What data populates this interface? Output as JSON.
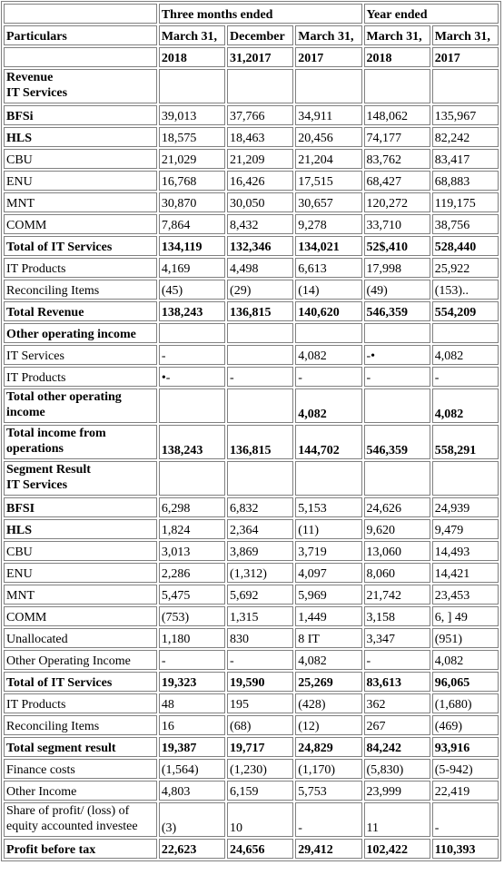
{
  "headers": {
    "particulars": "Particulars",
    "three_months": "Three months ended",
    "year_ended": "Year ended",
    "col1_top": "March 31,",
    "col1_bottom": "2018",
    "col2_top": "December",
    "col2_bottom": "31,2017",
    "col3_top": "March 31,",
    "col3_bottom": "2017",
    "col4_top": "March 31,",
    "col4_bottom": "2018",
    "col5_top": "March 31,",
    "col5_bottom": "2017"
  },
  "rows": [
    {
      "label": "Revenue\nIT Services",
      "bold": true,
      "rowclass": "r2",
      "values": [
        "",
        "",
        "",
        "",
        ""
      ]
    },
    {
      "label": "BFSi",
      "bold": true,
      "values": [
        "39,013",
        "37,766",
        "34,911",
        "148,062",
        "135,967"
      ]
    },
    {
      "label": "HLS",
      "bold": true,
      "values": [
        "18,575",
        "18,463",
        "20,456",
        "74,177",
        "82,242"
      ]
    },
    {
      "label": "CBU",
      "values": [
        "21,029",
        "21,209",
        "21,204",
        "83,762",
        "83,417"
      ]
    },
    {
      "label": "ENU",
      "values": [
        "16,768",
        "16,426",
        "17,515",
        "68,427",
        "68,883"
      ]
    },
    {
      "label": "MNT",
      "values": [
        "30,870",
        "30,050",
        "30,657",
        "120,272",
        "119,175"
      ]
    },
    {
      "label": "COMM",
      "values": [
        "7,864",
        "8,432",
        "9,278",
        "33,710",
        "38,756"
      ]
    },
    {
      "label": "Total of IT Services",
      "bold": true,
      "boldvals": true,
      "values": [
        "134,119",
        "132,346",
        "134,021",
        "52$,410",
        "528,440"
      ]
    },
    {
      "label": "IT Products",
      "values": [
        "4,169",
        "4,498",
        "6,613",
        "17,998",
        "25,922"
      ]
    },
    {
      "label": "Reconciling Items",
      "values": [
        "(45)",
        "(29)",
        "(14)",
        "(49)",
        "(153).."
      ]
    },
    {
      "label": "Total Revenue",
      "bold": true,
      "boldvals": true,
      "values": [
        "138,243",
        "136,815",
        "140,620",
        "546,359",
        "554,209"
      ]
    },
    {
      "label": "Other operating income",
      "bold": true,
      "values": [
        "",
        "",
        "",
        "",
        ""
      ]
    },
    {
      "label": "IT Services",
      "values": [
        "-",
        "",
        "4,082",
        "-•",
        "4,082"
      ]
    },
    {
      "label": "IT Products",
      "values": [
        "•-",
        "-",
        "-",
        "-",
        "-"
      ]
    },
    {
      "label": "Total other operating income",
      "bold": true,
      "boldvals": true,
      "rowclass": "r2",
      "values": [
        "",
        "",
        "4,082",
        "",
        "4,082"
      ]
    },
    {
      "label": "Total income from operations",
      "bold": true,
      "boldvals": true,
      "rowclass": "r3",
      "values": [
        "138,243",
        "136,815",
        "144,702",
        "546,359",
        "558,291"
      ]
    },
    {
      "label": "Segment Result\nIT Services",
      "bold": true,
      "rowclass": "r2",
      "values": [
        "",
        "",
        "",
        "",
        ""
      ]
    },
    {
      "label": "BFSI",
      "bold": true,
      "values": [
        "6,298",
        "6,832",
        "5,153",
        "24,626",
        "24,939"
      ]
    },
    {
      "label": "HLS",
      "bold": true,
      "values": [
        "1,824",
        "2,364",
        "(11)",
        "9,620",
        "9,479"
      ]
    },
    {
      "label": "CBU",
      "values": [
        "3,013",
        "3,869",
        "3,719",
        "13,060",
        "14,493"
      ]
    },
    {
      "label": "ENU",
      "values": [
        "2,286",
        "(1,312)",
        "4,097",
        "8,060",
        "14,421"
      ]
    },
    {
      "label": "MNT",
      "values": [
        "5,475",
        "5,692",
        "5,969",
        "21,742",
        "23,453"
      ]
    },
    {
      "label": "COMM",
      "values": [
        "(753)",
        "1,315",
        "1,449",
        "3,158",
        "6, ] 49"
      ]
    },
    {
      "label": "Unallocated",
      "values": [
        "1,180",
        "830",
        "8 IT",
        "3,347",
        "(951)"
      ]
    },
    {
      "label": "Other Operating Income",
      "values": [
        "-",
        "-",
        "4,082",
        "-",
        "4,082"
      ]
    },
    {
      "label": "Total of IT Services",
      "bold": true,
      "boldvals": true,
      "values": [
        "19,323",
        "19,590",
        "25,269",
        "83,613",
        "96,065"
      ]
    },
    {
      "label": "IT Products",
      "values": [
        "48",
        "195",
        "(428)",
        "362",
        "(1,680)"
      ]
    },
    {
      "label": "Reconciling Items",
      "values": [
        "16",
        "(68)",
        "(12)",
        "267",
        "(469)"
      ]
    },
    {
      "label": "Total segment result",
      "bold": true,
      "boldvals": true,
      "values": [
        "19,387",
        "19,717",
        "24,829",
        "84,242",
        "93,916"
      ]
    },
    {
      "label": "Finance costs",
      "values": [
        "(1,564)",
        "(1,230)",
        "(1,170)",
        "(5,830)",
        "(5-942)"
      ]
    },
    {
      "label": "Other Income",
      "values": [
        "4,803",
        "6,159",
        "5,753",
        "23,999",
        "22,419"
      ]
    },
    {
      "label": "Share of profit/ (loss) of equity accounted investee",
      "rowclass": "r2",
      "values": [
        "(3)",
        "10",
        "-",
        "11",
        "-"
      ]
    },
    {
      "label": "Profit before tax",
      "bold": true,
      "boldvals": true,
      "values": [
        "22,623",
        "24,656",
        "29,412",
        "102,422",
        "110,393"
      ]
    }
  ]
}
